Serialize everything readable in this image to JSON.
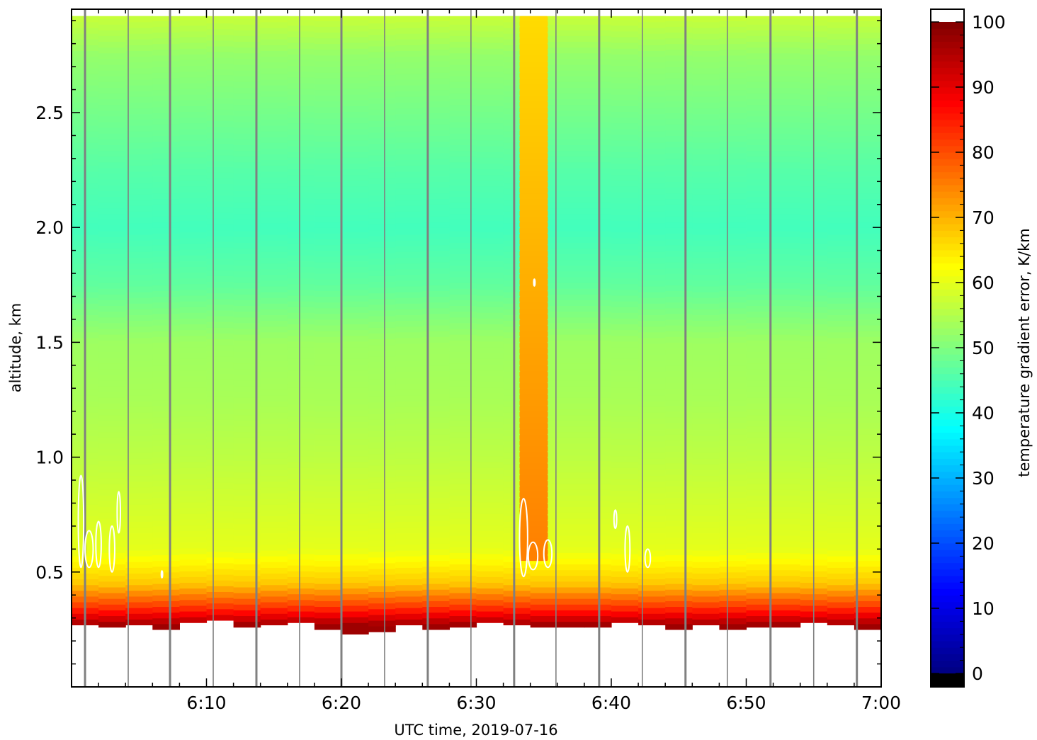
{
  "chart_data": {
    "type": "heatmap",
    "title": "",
    "xlabel": "UTC time,  2019-07-16",
    "ylabel": "altitude, km",
    "x_ticks": [
      "6:10",
      "6:20",
      "6:30",
      "6:40",
      "6:50",
      "7:00"
    ],
    "x_tick_values": [
      10,
      20,
      30,
      40,
      50,
      60
    ],
    "xlim": [
      0.0,
      60.0
    ],
    "y_ticks": [
      "0.5",
      "1.0",
      "1.5",
      "2.0",
      "2.5"
    ],
    "y_tick_values": [
      0.5,
      1.0,
      1.5,
      2.0,
      2.5
    ],
    "ylim": [
      0.0,
      2.95
    ],
    "colorbar": {
      "label": "temperature gradient error, K/km",
      "ticks": [
        "0",
        "10",
        "20",
        "30",
        "40",
        "50",
        "60",
        "70",
        "80",
        "90",
        "100"
      ],
      "tick_values": [
        0,
        10,
        20,
        30,
        40,
        50,
        60,
        70,
        80,
        90,
        100
      ],
      "range": [
        0,
        100
      ],
      "colormap": "jet"
    },
    "field": {
      "description_values": "approximate error (K/km) by altitude band",
      "altitude_km": [
        0.27,
        0.35,
        0.45,
        0.6,
        0.8,
        1.0,
        1.25,
        1.5,
        1.75,
        2.0,
        2.25,
        2.5,
        2.75,
        2.92
      ],
      "error_K_per_km": [
        97,
        82,
        68,
        60,
        58,
        56,
        54,
        53,
        47,
        44,
        46,
        49,
        52,
        57
      ],
      "lower_data_limit_km": [
        0.27,
        0.26,
        0.27,
        0.25,
        0.28,
        0.29,
        0.26,
        0.27,
        0.28,
        0.25,
        0.23,
        0.24,
        0.27,
        0.25,
        0.26,
        0.28,
        0.27,
        0.26,
        0.26,
        0.26,
        0.28,
        0.27,
        0.25,
        0.27,
        0.25,
        0.26,
        0.26,
        0.28,
        0.27,
        0.25
      ],
      "high_error_column": {
        "time_min": [
          33.2,
          35.3
        ],
        "error_K_per_km": [
          66,
          75
        ]
      }
    },
    "scan_markers_min": [
      1.0,
      4.2,
      7.3,
      10.5,
      13.7,
      16.9,
      20.0,
      23.2,
      26.4,
      29.6,
      32.8,
      35.9,
      39.1,
      42.3,
      45.5,
      48.6,
      51.8,
      55.0,
      58.2
    ],
    "contours": [
      {
        "t": 0.7,
        "h": 0.72,
        "rx": 0.2,
        "rh": 0.2
      },
      {
        "t": 1.3,
        "h": 0.6,
        "rx": 0.3,
        "rh": 0.08
      },
      {
        "t": 2.0,
        "h": 0.62,
        "rx": 0.2,
        "rh": 0.1
      },
      {
        "t": 3.0,
        "h": 0.6,
        "rx": 0.2,
        "rh": 0.1
      },
      {
        "t": 3.5,
        "h": 0.76,
        "rx": 0.12,
        "rh": 0.09
      },
      {
        "t": 6.7,
        "h": 0.49,
        "rx": 0.05,
        "rh": 0.015
      },
      {
        "t": 33.5,
        "h": 0.65,
        "rx": 0.3,
        "rh": 0.17
      },
      {
        "t": 34.2,
        "h": 0.57,
        "rx": 0.35,
        "rh": 0.06
      },
      {
        "t": 35.3,
        "h": 0.58,
        "rx": 0.3,
        "rh": 0.06
      },
      {
        "t": 34.3,
        "h": 1.76,
        "rx": 0.05,
        "rh": 0.015
      },
      {
        "t": 40.3,
        "h": 0.73,
        "rx": 0.1,
        "rh": 0.04
      },
      {
        "t": 41.2,
        "h": 0.6,
        "rx": 0.18,
        "rh": 0.1
      },
      {
        "t": 42.7,
        "h": 0.56,
        "rx": 0.2,
        "rh": 0.04
      }
    ]
  }
}
